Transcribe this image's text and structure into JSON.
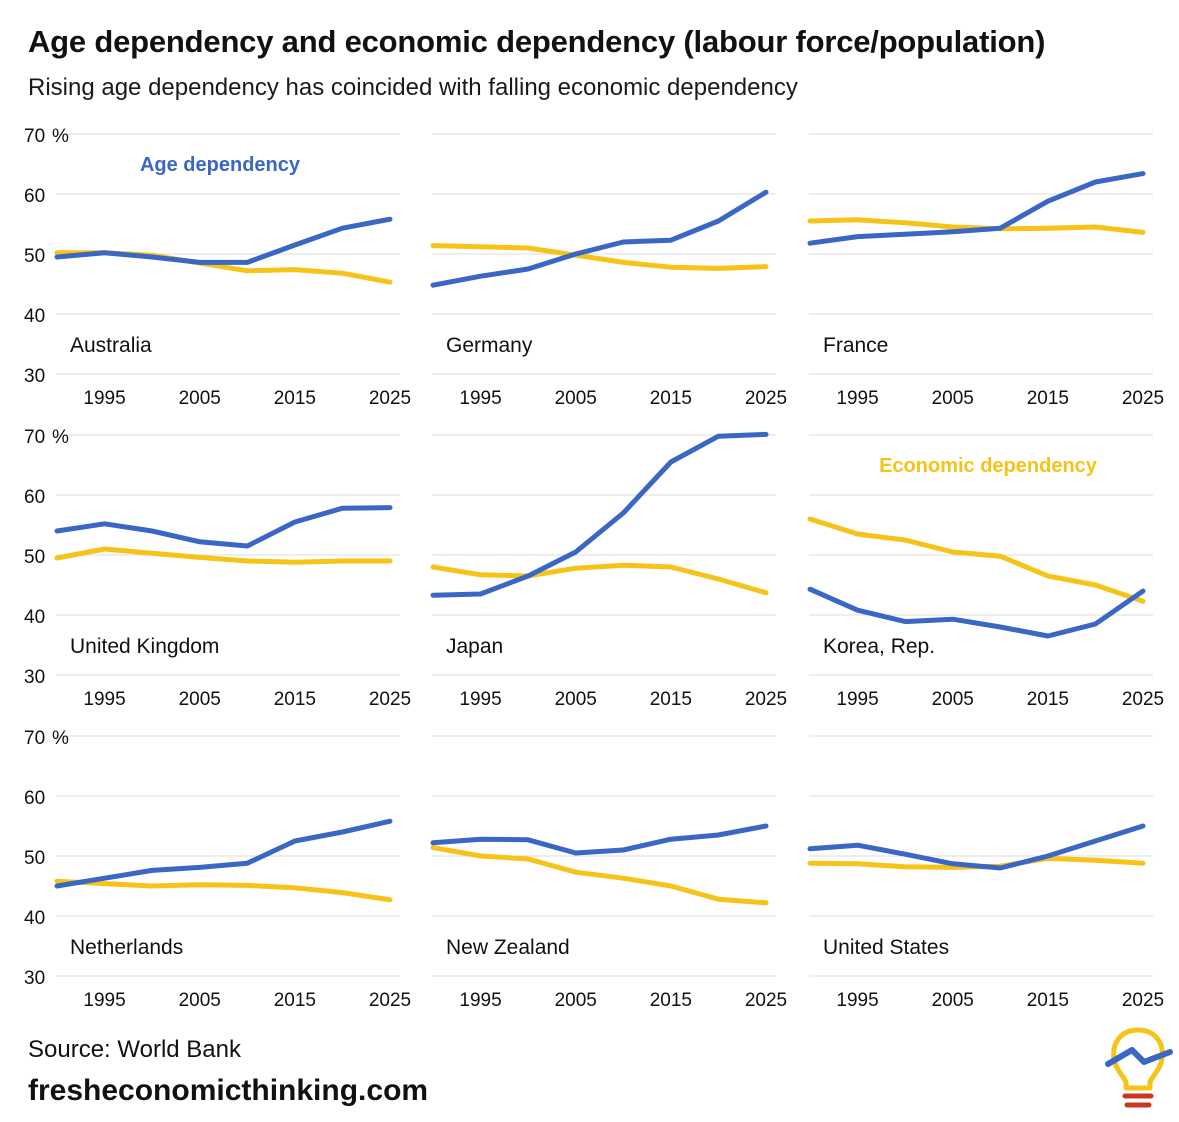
{
  "title": "Age dependency and economic dependency (labour force/population)",
  "subtitle": "Rising age dependency has coincided with falling economic dependency",
  "source": "Source: World Bank",
  "site": "fresheconomicthinking.com",
  "colors": {
    "age": "#3A66C4",
    "economic": "#F6C418",
    "grid": "#DCDCDC",
    "logo_red": "#C8371F"
  },
  "chart_data": {
    "type": "line",
    "layout": "small-multiples 3x3",
    "xlim": [
      1990,
      2025
    ],
    "ylim": [
      30,
      70
    ],
    "x_ticks": [
      "1995",
      "2005",
      "2015",
      "2025"
    ],
    "y_ticks": [
      "30",
      "40",
      "50",
      "60",
      "70"
    ],
    "y_unit": "%",
    "grid": true,
    "legend": [
      {
        "name": "Age dependency",
        "series": "age"
      },
      {
        "name": "Economic dependency",
        "series": "economic"
      }
    ],
    "x": [
      1990,
      1995,
      2000,
      2005,
      2010,
      2015,
      2020,
      2025
    ],
    "panels": [
      {
        "name": "Australia",
        "age": [
          49.5,
          50.2,
          49.5,
          48.6,
          48.6,
          51.5,
          54.3,
          55.8
        ],
        "economic": [
          50.2,
          50.2,
          49.8,
          48.5,
          47.2,
          47.4,
          46.8,
          45.3
        ]
      },
      {
        "name": "Germany",
        "age": [
          44.8,
          46.3,
          47.5,
          50.0,
          52.0,
          52.3,
          55.5,
          60.3
        ],
        "economic": [
          51.4,
          51.2,
          51.0,
          49.8,
          48.6,
          47.8,
          47.6,
          47.9
        ]
      },
      {
        "name": "France",
        "age": [
          51.8,
          52.9,
          53.3,
          53.7,
          54.3,
          58.8,
          62.0,
          63.4
        ],
        "economic": [
          55.5,
          55.7,
          55.2,
          54.5,
          54.2,
          54.3,
          54.5,
          53.6
        ]
      },
      {
        "name": "United Kingdom",
        "age": [
          54.0,
          55.2,
          54.0,
          52.2,
          51.5,
          55.5,
          57.8,
          57.9
        ],
        "economic": [
          49.5,
          51.0,
          50.3,
          49.6,
          49.0,
          48.8,
          49.0,
          49.0
        ]
      },
      {
        "name": "Japan",
        "age": [
          43.3,
          43.5,
          46.5,
          50.5,
          57.0,
          65.5,
          69.8,
          70.1
        ],
        "economic": [
          48.0,
          46.7,
          46.5,
          47.8,
          48.3,
          48.0,
          46.0,
          43.7
        ]
      },
      {
        "name": "Korea, Rep.",
        "age": [
          44.3,
          40.8,
          38.9,
          39.3,
          38.0,
          36.5,
          38.5,
          44.0
        ],
        "economic": [
          56.0,
          53.5,
          52.5,
          50.5,
          49.8,
          46.5,
          45.0,
          42.3
        ]
      },
      {
        "name": "Netherlands",
        "age": [
          45.0,
          46.3,
          47.6,
          48.1,
          48.8,
          52.5,
          54.0,
          55.8
        ],
        "economic": [
          45.8,
          45.4,
          45.0,
          45.2,
          45.1,
          44.7,
          43.9,
          42.7
        ]
      },
      {
        "name": "New Zealand",
        "age": [
          52.2,
          52.8,
          52.7,
          50.5,
          51.0,
          52.8,
          53.5,
          55.0
        ],
        "economic": [
          51.4,
          50.0,
          49.5,
          47.3,
          46.3,
          45.0,
          42.8,
          42.2
        ]
      },
      {
        "name": "United States",
        "age": [
          51.2,
          51.8,
          50.3,
          48.7,
          48.0,
          50.0,
          52.5,
          55.0
        ],
        "economic": [
          48.8,
          48.7,
          48.2,
          48.1,
          48.3,
          49.6,
          49.3,
          48.8
        ]
      }
    ]
  }
}
